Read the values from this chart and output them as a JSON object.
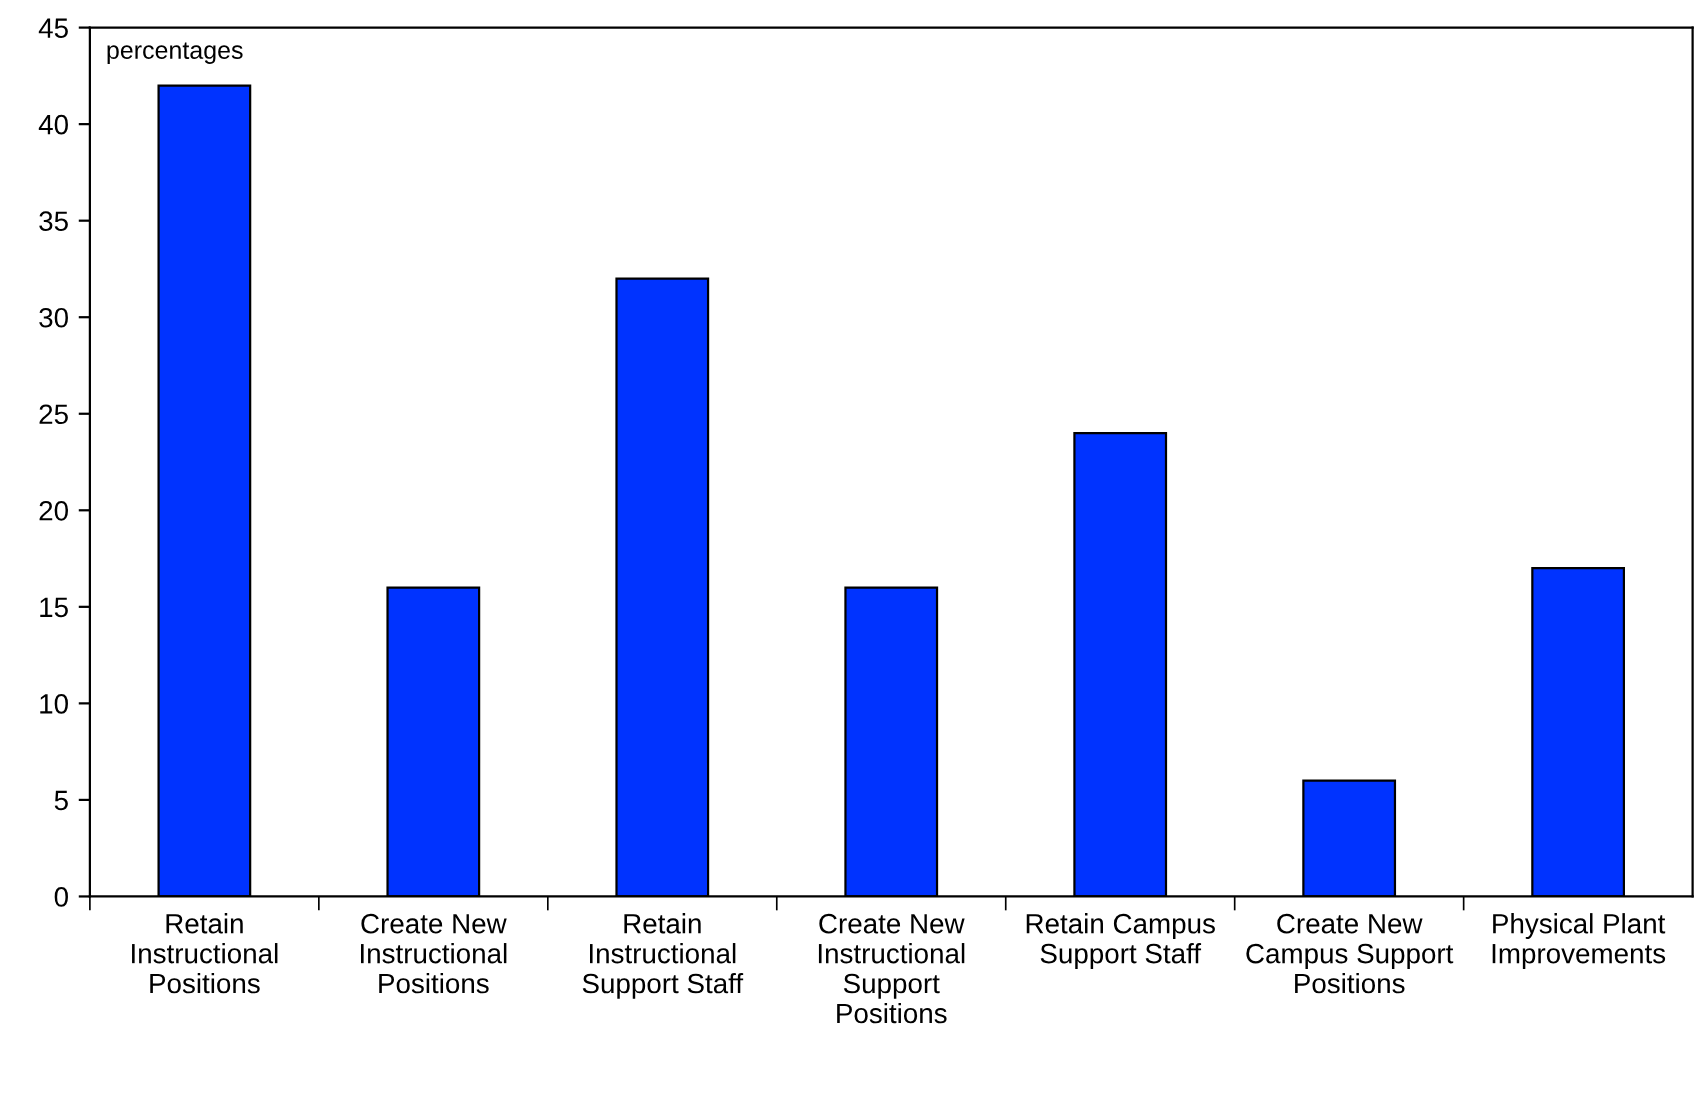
{
  "chart_data": {
    "type": "bar",
    "ylabel": "percentages",
    "categories": [
      "Retain\nInstructional\nPositions",
      "Create New\nInstructional\nPositions",
      "Retain\nInstructional\nSupport Staff",
      "Create New\nInstructional\nSupport\nPositions",
      "Retain Campus\nSupport Staff",
      "Create New\nCampus Support\nPositions",
      "Physical Plant\nImprovements"
    ],
    "values": [
      42,
      16,
      32,
      16,
      24,
      6,
      17
    ],
    "color": "#0033ff",
    "ylim": [
      0,
      45
    ],
    "yticks": [
      0,
      5,
      10,
      15,
      20,
      25,
      30,
      35,
      40,
      45
    ],
    "grid": false,
    "legend": false
  }
}
